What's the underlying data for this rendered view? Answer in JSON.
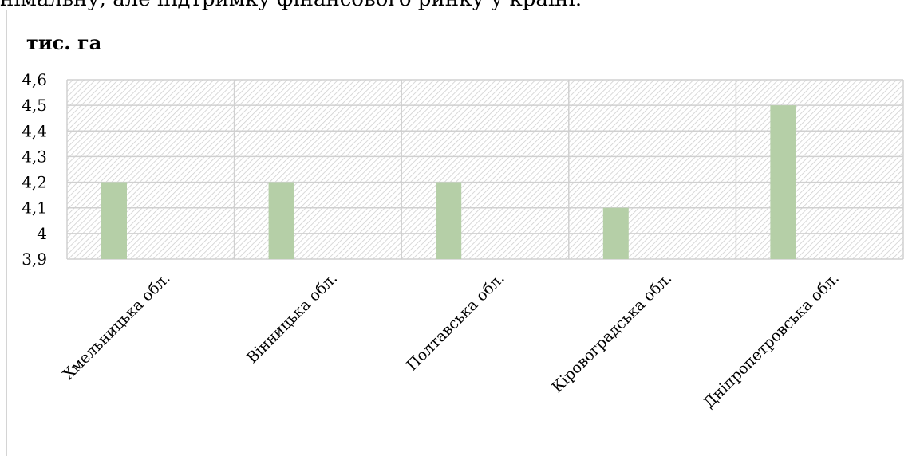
{
  "top_text": "німальну, але підтримку фінансового ринку у країні.",
  "chart_data": {
    "type": "bar",
    "title": "тис. га",
    "categories": [
      "Хмельницька обл.",
      "Вінницька обл.",
      "Полтавська обл.",
      "Кіровоградська обл.",
      "Дніпропетровська обл."
    ],
    "values": [
      4.2,
      4.2,
      4.2,
      4.1,
      4.5
    ],
    "ylim": [
      3.9,
      4.6
    ],
    "yticks": [
      "3,9",
      "4",
      "4,1",
      "4,2",
      "4,3",
      "4,4",
      "4,5",
      "4,6"
    ],
    "grid": true,
    "bar_color": "#b5cfa7",
    "grid_color": "#d0d0d0"
  }
}
